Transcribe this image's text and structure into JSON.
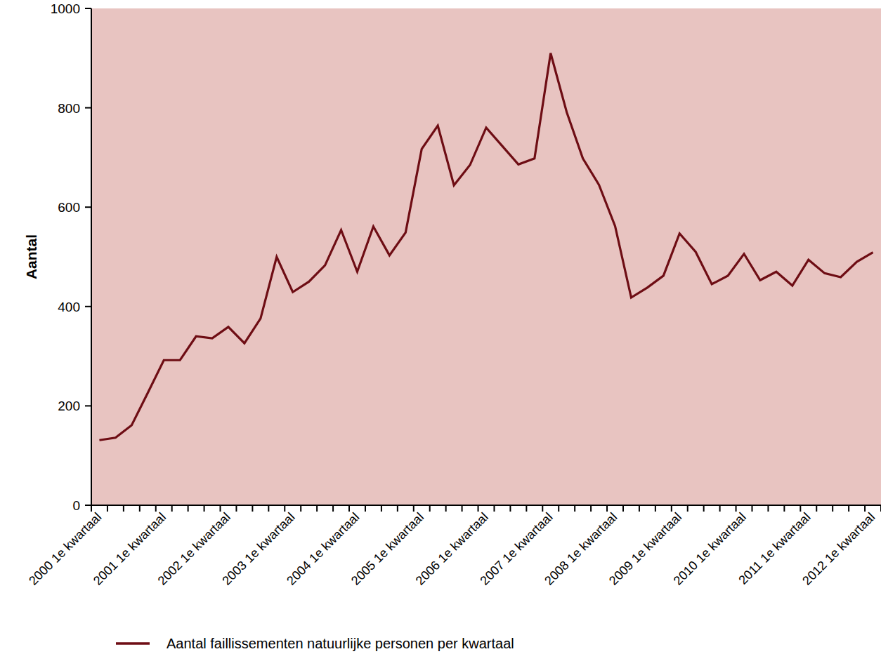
{
  "chart_data": {
    "type": "line",
    "y_label": "Aantal",
    "categories": [
      "2000 1e kwartaal",
      null,
      null,
      null,
      "2001 1e kwartaal",
      null,
      null,
      null,
      "2002 1e kwartaal",
      null,
      null,
      null,
      "2003 1e kwartaal",
      null,
      null,
      null,
      "2004 1e kwartaal",
      null,
      null,
      null,
      "2005 1e kwartaal",
      null,
      null,
      null,
      "2006 1e kwartaal",
      null,
      null,
      null,
      "2007 1e kwartaal",
      null,
      null,
      null,
      "2008 1e kwartaal",
      null,
      null,
      null,
      "2009 1e kwartaal",
      null,
      null,
      null,
      "2010 1e kwartaal",
      null,
      null,
      null,
      "2011 1e kwartaal",
      null,
      null,
      null,
      "2012 1e kwartaal"
    ],
    "series": [
      {
        "name": "Aantal faillissementen natuurlijke personen per kwartaal",
        "color": "#6e0d14",
        "values": [
          131,
          136,
          161,
          226,
          292,
          292,
          340,
          336,
          359,
          326,
          376,
          500,
          429,
          450,
          483,
          554,
          470,
          561,
          503,
          549,
          717,
          764,
          644,
          685,
          760,
          723,
          686,
          698,
          910,
          791,
          698,
          645,
          562,
          418,
          438,
          462,
          547,
          510,
          445,
          462,
          506,
          453,
          470,
          442,
          494,
          467,
          459,
          490,
          509
        ]
      }
    ],
    "ylim": [
      0,
      1000
    ],
    "yticks": [
      0,
      200,
      400,
      600,
      800,
      1000
    ],
    "grid": false,
    "legend": "bottom"
  }
}
